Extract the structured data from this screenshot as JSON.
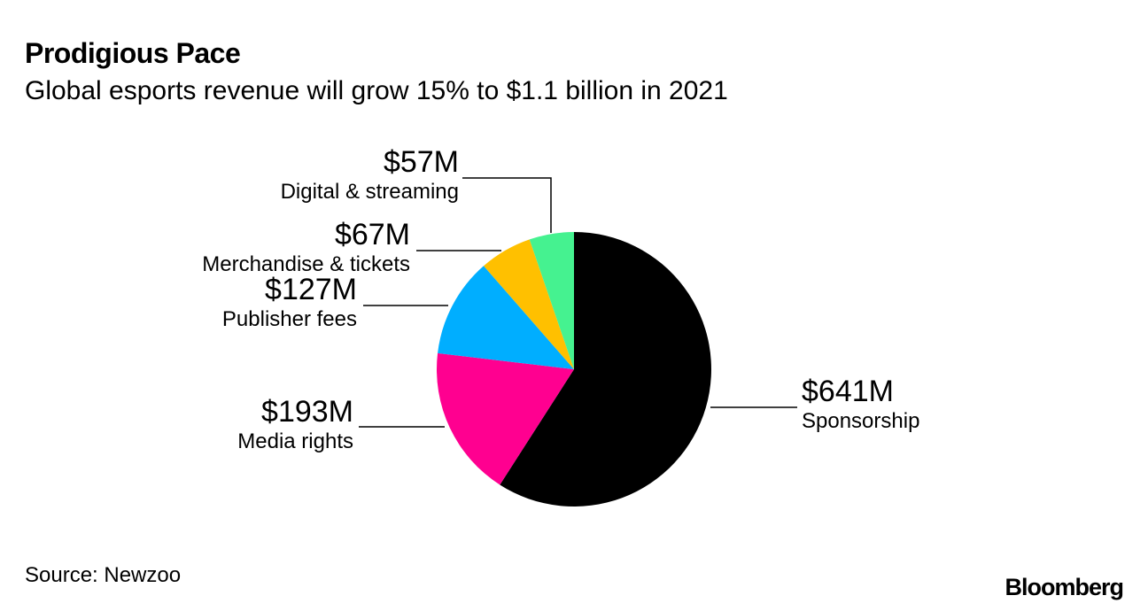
{
  "chart_data": {
    "type": "pie",
    "title": "Prodigious Pace",
    "subtitle": "Global esports revenue will grow 15% to $1.1 billion in 2021",
    "source": "Source: Newzoo",
    "brand": "Bloomberg",
    "unit": "USD millions",
    "slices": [
      {
        "label": "Sponsorship",
        "value": 641,
        "value_label": "$641M",
        "color": "#000000"
      },
      {
        "label": "Media rights",
        "value": 193,
        "value_label": "$193M",
        "color": "#ff0090"
      },
      {
        "label": "Publisher fees",
        "value": 127,
        "value_label": "$127M",
        "color": "#00aeff"
      },
      {
        "label": "Merchandise & tickets",
        "value": 67,
        "value_label": "$67M",
        "color": "#ffc000"
      },
      {
        "label": "Digital & streaming",
        "value": 57,
        "value_label": "$57M",
        "color": "#45f290"
      }
    ]
  }
}
